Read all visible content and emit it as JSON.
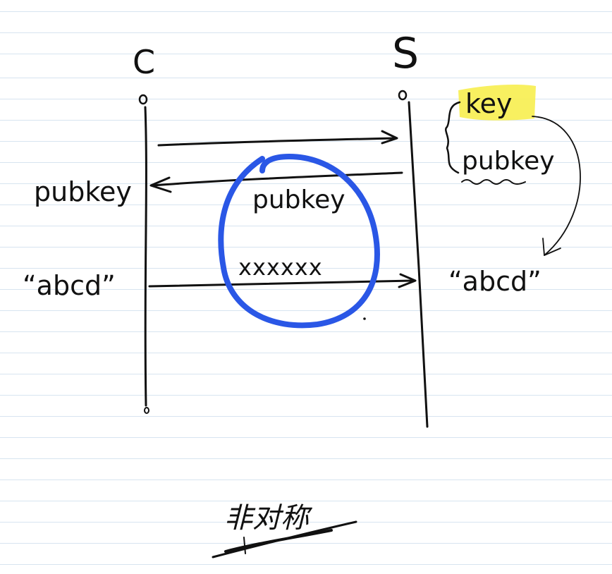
{
  "diagram": {
    "client_label": "C",
    "server_label": "S",
    "server_key_label": "key",
    "server_pubkey_label": "pubkey",
    "client_pubkey_label": "pubkey",
    "middle_pubkey_label": "pubkey",
    "ciphertext_label": "xxxxxx",
    "client_plaintext_label": "“abcd”",
    "server_plaintext_label": "“abcd”",
    "caption": "非对称"
  },
  "colors": {
    "ink": "#111111",
    "highlight": "#f7ee4f",
    "circle_blue": "#2a57e6",
    "ruled_line": "#d7e4f0"
  }
}
